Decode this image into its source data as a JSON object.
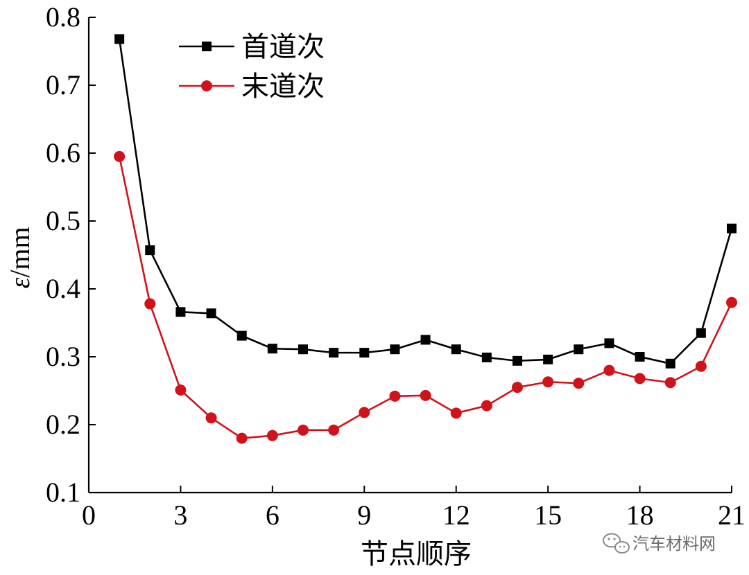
{
  "chart_data": {
    "type": "line",
    "title": "",
    "xlabel": "节点顺序",
    "ylabel_symbol": "ε",
    "ylabel_unit": "/mm",
    "xlim": [
      0,
      21
    ],
    "ylim": [
      0.1,
      0.8
    ],
    "xticks": [
      0,
      3,
      6,
      9,
      12,
      15,
      18,
      21
    ],
    "yticks": [
      0.1,
      0.2,
      0.3,
      0.4,
      0.5,
      0.6,
      0.7,
      0.8
    ],
    "grid": false,
    "legend_position": "top-left",
    "x": [
      1,
      2,
      3,
      4,
      5,
      6,
      7,
      8,
      9,
      10,
      11,
      12,
      13,
      14,
      15,
      16,
      17,
      18,
      19,
      20,
      21
    ],
    "series": [
      {
        "name": "首道次",
        "color": "#000000",
        "marker": "square",
        "values": [
          0.768,
          0.457,
          0.366,
          0.364,
          0.331,
          0.312,
          0.311,
          0.306,
          0.306,
          0.311,
          0.325,
          0.311,
          0.299,
          0.294,
          0.296,
          0.311,
          0.32,
          0.3,
          0.29,
          0.335,
          0.489
        ]
      },
      {
        "name": "末道次",
        "color": "#d0121b",
        "marker": "circle",
        "values": [
          0.595,
          0.378,
          0.251,
          0.21,
          0.18,
          0.184,
          0.192,
          0.192,
          0.218,
          0.242,
          0.243,
          0.217,
          0.228,
          0.255,
          0.263,
          0.261,
          0.28,
          0.268,
          0.262,
          0.286,
          0.38
        ]
      }
    ]
  },
  "watermark": {
    "text": "汽车材料网",
    "icon": "wechat-icon"
  }
}
